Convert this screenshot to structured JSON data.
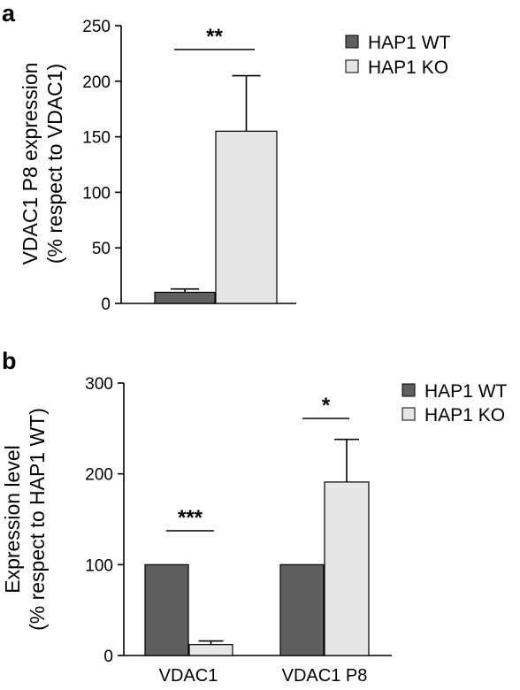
{
  "chart_data": [
    {
      "panel": "a",
      "type": "bar",
      "categories": [
        ""
      ],
      "series": [
        {
          "name": "HAP1 WT",
          "values": [
            10
          ],
          "errors": [
            3
          ]
        },
        {
          "name": "HAP1 KO",
          "values": [
            155
          ],
          "errors": [
            50
          ]
        }
      ],
      "ylabel": [
        "VDAC1 P8 expression",
        "(% respect to VDAC1)"
      ],
      "ylim": [
        0,
        250
      ],
      "yticks": [
        0,
        50,
        100,
        150,
        200,
        250
      ],
      "significance": [
        "**"
      ],
      "legend_position": "top-right"
    },
    {
      "panel": "b",
      "type": "bar",
      "categories": [
        "VDAC1",
        "VDAC1 P8"
      ],
      "series": [
        {
          "name": "HAP1 WT",
          "values": [
            100,
            100
          ],
          "errors": [
            0,
            0
          ]
        },
        {
          "name": "HAP1 KO",
          "values": [
            12,
            191
          ],
          "errors": [
            4,
            47
          ]
        }
      ],
      "ylabel": [
        "Expression level",
        "(% respect to HAP1 WT)"
      ],
      "ylim": [
        0,
        300
      ],
      "yticks": [
        0,
        100,
        200,
        300
      ],
      "significance": [
        "***",
        "*"
      ],
      "legend_position": "top-right"
    }
  ],
  "colors": {
    "wt": "#5f5f5f",
    "ko": "#e6e6e6",
    "stroke": "#000000"
  }
}
